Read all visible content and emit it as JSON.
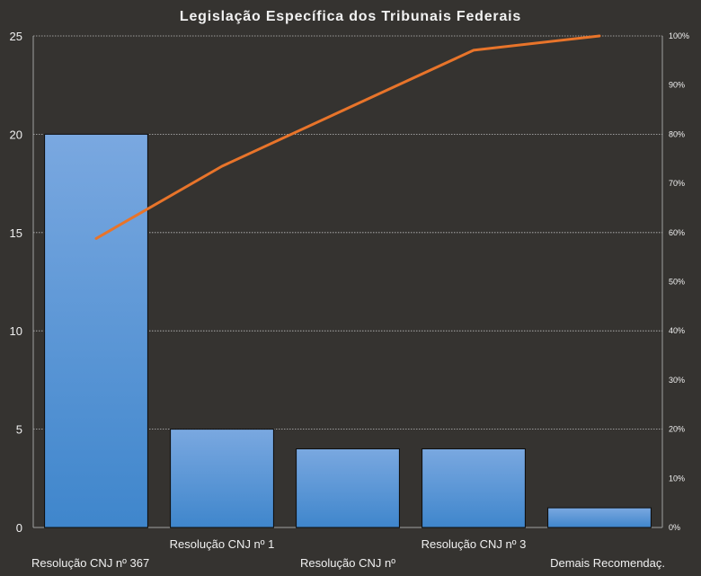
{
  "chart_data": {
    "type": "bar",
    "title": "Legislação Específica dos Tribunais Federais",
    "categories": [
      "Resolução CNJ nº 367",
      "Resolução CNJ nº 1",
      "Resolução CNJ nº",
      "Resolução CNJ nº 3",
      "Demais Recomendaç."
    ],
    "series": [
      {
        "type": "bar",
        "values": [
          20,
          5,
          4,
          4,
          1
        ]
      },
      {
        "type": "line",
        "axis": "right",
        "values": [
          58.8,
          73.5,
          85.3,
          97.1,
          100
        ]
      }
    ],
    "ylim": [
      0,
      25
    ],
    "yticks": [
      0,
      5,
      10,
      15,
      20,
      25
    ],
    "y2lim": [
      0,
      100
    ],
    "y2ticks": [
      "0%",
      "10%",
      "20%",
      "30%",
      "40%",
      "50%",
      "60%",
      "70%",
      "80%",
      "90%",
      "100%"
    ],
    "grid": true,
    "legend": "none",
    "colors": {
      "background": "#353330",
      "bar_top": "#7aa8e0",
      "bar_bottom": "#3f86cc",
      "line": "#e8742a",
      "text": "#f0f0f0"
    }
  }
}
